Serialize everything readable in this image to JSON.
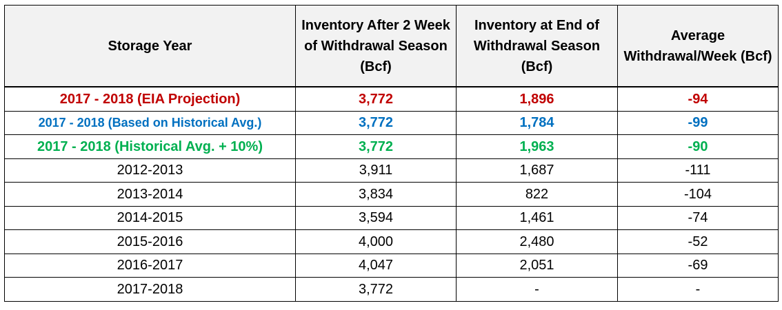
{
  "table": {
    "headers": [
      "Storage Year",
      "Inventory After 2 Week of Withdrawal Season (Bcf)",
      "Inventory at End of Withdrawal Season (Bcf)",
      "Average Withdrawal/Week (Bcf)"
    ],
    "projection_rows": [
      {
        "year": "2017 - 2018 (EIA Projection)",
        "after_2_weeks": "3,772",
        "end_season": "1,896",
        "avg_week": "-94",
        "color": "#c00000"
      },
      {
        "year": "2017 - 2018 (Based on Historical Avg.)",
        "after_2_weeks": "3,772",
        "end_season": "1,784",
        "avg_week": "-99",
        "color": "#0070c0"
      },
      {
        "year": "2017 - 2018 (Historical Avg. + 10%)",
        "after_2_weeks": "3,772",
        "end_season": "1,963",
        "avg_week": "-90",
        "color": "#00b050"
      }
    ],
    "history_rows": [
      {
        "year": "2012-2013",
        "after_2_weeks": "3,911",
        "end_season": "1,687",
        "avg_week": "-111"
      },
      {
        "year": "2013-2014",
        "after_2_weeks": "3,834",
        "end_season": "822",
        "avg_week": "-104"
      },
      {
        "year": "2014-2015",
        "after_2_weeks": "3,594",
        "end_season": "1,461",
        "avg_week": "-74"
      },
      {
        "year": "2015-2016",
        "after_2_weeks": "4,000",
        "end_season": "2,480",
        "avg_week": "-52"
      },
      {
        "year": "2016-2017",
        "after_2_weeks": "4,047",
        "end_season": "2,051",
        "avg_week": "-69"
      },
      {
        "year": "2017-2018",
        "after_2_weeks": "3,772",
        "end_season": "-",
        "avg_week": "-"
      }
    ]
  }
}
